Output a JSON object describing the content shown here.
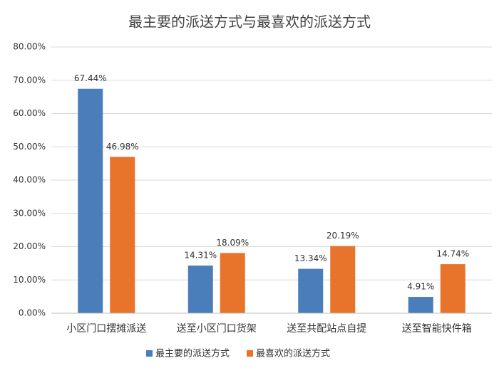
{
  "chart_data": {
    "type": "bar",
    "title": "最主要的派送方式与最喜欢的派送方式",
    "categories": [
      "小区门口摆摊派送",
      "送至小区门口货架",
      "送至共配站点自提",
      "送至智能快件箱"
    ],
    "series": [
      {
        "name": "最主要的派送方式",
        "color": "#4a7ebb",
        "values": [
          67.44,
          14.31,
          13.34,
          4.91
        ],
        "value_labels": [
          "67.44%",
          "14.31%",
          "13.34%",
          "4.91%"
        ]
      },
      {
        "name": "最喜欢的派送方式",
        "color": "#e8732a",
        "values": [
          46.98,
          18.09,
          20.19,
          14.74
        ],
        "value_labels": [
          "46.98%",
          "18.09%",
          "20.19%",
          "14.74%"
        ]
      }
    ],
    "ylim": [
      0,
      80
    ],
    "yticks": [
      {
        "value": 0,
        "label": "0.00%"
      },
      {
        "value": 10,
        "label": "10.00%"
      },
      {
        "value": 20,
        "label": "20.00%"
      },
      {
        "value": 30,
        "label": "30.00%"
      },
      {
        "value": 40,
        "label": "40.00%"
      },
      {
        "value": 50,
        "label": "50.00%"
      },
      {
        "value": 60,
        "label": "60.00%"
      },
      {
        "value": 70,
        "label": "70.00%"
      },
      {
        "value": 80,
        "label": "80.00%"
      }
    ],
    "grid": true,
    "legend": "bottom"
  }
}
